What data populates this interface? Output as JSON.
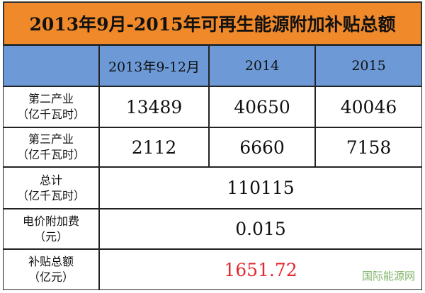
{
  "title": "2013年9月-2015年可再生能源附加补贴总额",
  "header": {
    "columns": [
      "2013年9-12月",
      "2014",
      "2015"
    ]
  },
  "rows": [
    {
      "label": [
        "第二产业",
        "（亿千瓦时）"
      ],
      "values": [
        "13489",
        "40650",
        "40046"
      ]
    },
    {
      "label": [
        "第三产业",
        "（亿千瓦时）"
      ],
      "values": [
        "2112",
        "6660",
        "7158"
      ]
    },
    {
      "label": [
        "总计",
        "（亿千瓦时）"
      ],
      "value": "110115"
    },
    {
      "label": [
        "电价附加费",
        "（元）"
      ],
      "value": "0.015"
    },
    {
      "label": [
        "补贴总额",
        "（亿元）"
      ],
      "value": "1651.72"
    }
  ],
  "watermark": "国际能源网"
}
